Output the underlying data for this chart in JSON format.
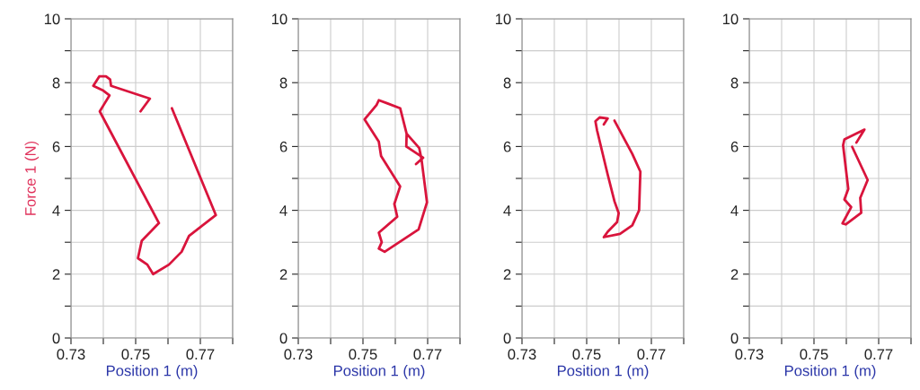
{
  "chart_data": [
    {
      "type": "line",
      "xlabel": "Position 1 (m)",
      "ylabel": "Force 1 (N)",
      "xlim": [
        0.73,
        0.78
      ],
      "ylim": [
        0,
        10
      ],
      "grid": true,
      "marker": "none",
      "line_style": "solid",
      "xticks": [
        0.73,
        {
          "value": 0.74,
          "label": null
        },
        0.75,
        {
          "value": 0.76,
          "label": null
        },
        0.77,
        {
          "value": 0.78,
          "label": null
        }
      ],
      "yticks": [
        0,
        {
          "value": 1,
          "label": null
        },
        2,
        {
          "value": 3,
          "label": null
        },
        4,
        {
          "value": 5,
          "label": null
        },
        6,
        {
          "value": 7,
          "label": null
        },
        8,
        {
          "value": 9,
          "label": null
        },
        10
      ],
      "series": [
        {
          "color": "#d9143c",
          "x": [
            0.7515,
            0.7544,
            0.7424,
            0.7421,
            0.7408,
            0.7388,
            0.7369,
            0.74,
            0.7419,
            0.7401,
            0.7389,
            0.7572,
            0.7519,
            0.7507,
            0.7536,
            0.7554,
            0.7603,
            0.7642,
            0.7665,
            0.7748,
            0.7612
          ],
          "values": [
            7.1,
            7.5,
            7.9,
            8.1,
            8.2,
            8.2,
            7.9,
            7.75,
            7.6,
            7.3,
            7.1,
            3.6,
            3.05,
            2.5,
            2.3,
            2.0,
            2.3,
            2.7,
            3.2,
            3.85,
            7.2
          ]
        }
      ]
    },
    {
      "type": "line",
      "xlabel": "Position 1 (m)",
      "xlim": [
        0.73,
        0.78
      ],
      "ylim": [
        0,
        10
      ],
      "grid": true,
      "marker": "none",
      "line_style": "solid",
      "xticks": [
        0.73,
        {
          "value": 0.74,
          "label": null
        },
        0.75,
        {
          "value": 0.76,
          "label": null
        },
        0.77,
        {
          "value": 0.78,
          "label": null
        }
      ],
      "yticks": [
        0,
        {
          "value": 1,
          "label": null
        },
        2,
        {
          "value": 3,
          "label": null
        },
        4,
        {
          "value": 5,
          "label": null
        },
        6,
        {
          "value": 7,
          "label": null
        },
        8,
        {
          "value": 9,
          "label": null
        },
        10
      ],
      "series": [
        {
          "color": "#d9143c",
          "x": [
            0.7664,
            0.7686,
            0.7634,
            0.7635,
            0.7615,
            0.7576,
            0.7549,
            0.7542,
            0.7505,
            0.7549,
            0.7556,
            0.7615,
            0.7597,
            0.7606,
            0.7549,
            0.7558,
            0.7549,
            0.7567,
            0.7672,
            0.7698,
            0.7681,
            0.7674,
            0.7635
          ],
          "values": [
            5.45,
            5.65,
            6.0,
            6.4,
            7.2,
            7.35,
            7.45,
            7.3,
            6.85,
            6.15,
            5.7,
            4.75,
            4.2,
            3.8,
            3.3,
            3.0,
            2.8,
            2.7,
            3.4,
            4.25,
            5.6,
            5.95,
            6.4
          ]
        }
      ]
    },
    {
      "type": "line",
      "xlabel": "Position 1 (m)",
      "xlim": [
        0.73,
        0.78
      ],
      "ylim": [
        0,
        10
      ],
      "grid": true,
      "marker": "none",
      "line_style": "solid",
      "xticks": [
        0.73,
        {
          "value": 0.74,
          "label": null
        },
        0.75,
        {
          "value": 0.76,
          "label": null
        },
        0.77,
        {
          "value": 0.78,
          "label": null
        }
      ],
      "yticks": [
        0,
        {
          "value": 1,
          "label": null
        },
        2,
        {
          "value": 3,
          "label": null
        },
        4,
        {
          "value": 5,
          "label": null
        },
        6,
        {
          "value": 7,
          "label": null
        },
        8,
        {
          "value": 9,
          "label": null
        },
        10
      ],
      "series": [
        {
          "color": "#d9143c",
          "x": [
            0.7553,
            0.7565,
            0.754,
            0.7527,
            0.7532,
            0.7565,
            0.7586,
            0.7599,
            0.7594,
            0.7565,
            0.7553,
            0.7603,
            0.7641,
            0.7662,
            0.7666,
            0.7641,
            0.7586
          ],
          "values": [
            6.69,
            6.88,
            6.91,
            6.79,
            6.51,
            5.12,
            4.28,
            3.91,
            3.63,
            3.33,
            3.16,
            3.26,
            3.53,
            4.0,
            5.21,
            5.77,
            6.81
          ]
        }
      ]
    },
    {
      "type": "line",
      "xlabel": "Position 1 (m)",
      "xlim": [
        0.73,
        0.78
      ],
      "ylim": [
        0,
        10
      ],
      "grid": true,
      "marker": "none",
      "line_style": "solid",
      "xticks": [
        0.73,
        {
          "value": 0.74,
          "label": null
        },
        0.75,
        {
          "value": 0.76,
          "label": null
        },
        0.77,
        {
          "value": 0.78,
          "label": null
        }
      ],
      "yticks": [
        0,
        {
          "value": 1,
          "label": null
        },
        2,
        {
          "value": 3,
          "label": null
        },
        4,
        {
          "value": 5,
          "label": null
        },
        6,
        {
          "value": 7,
          "label": null
        },
        8,
        {
          "value": 9,
          "label": null
        },
        10
      ],
      "series": [
        {
          "color": "#d9143c",
          "x": [
            0.7631,
            0.7656,
            0.7594,
            0.759,
            0.7606,
            0.7594,
            0.7615,
            0.7588,
            0.7598,
            0.7646,
            0.7643,
            0.7666,
            0.7618
          ],
          "values": [
            6.12,
            6.53,
            6.22,
            6.04,
            4.67,
            4.34,
            4.1,
            3.59,
            3.56,
            3.92,
            4.39,
            4.95,
            5.99
          ]
        }
      ]
    }
  ]
}
